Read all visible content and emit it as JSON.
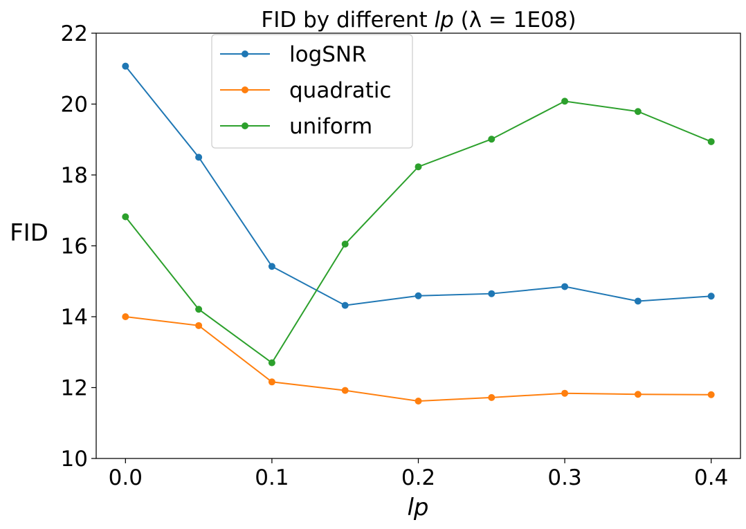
{
  "chart_data": {
    "type": "line",
    "title_prefix": "FID by different ",
    "title_var": "lp",
    "title_suffix": " (λ = 1E08)",
    "xlabel": "lp",
    "ylabel": "FID",
    "xlim": [
      -0.02,
      0.42
    ],
    "ylim": [
      10,
      22
    ],
    "x": [
      0.0,
      0.05,
      0.1,
      0.15,
      0.2,
      0.25,
      0.3,
      0.35,
      0.4
    ],
    "x_ticks": [
      "0.0",
      "0.1",
      "0.2",
      "0.3",
      "0.4"
    ],
    "y_ticks": [
      "10",
      "12",
      "14",
      "16",
      "18",
      "20",
      "22"
    ],
    "grid": false,
    "legend_position": "top-left",
    "series": [
      {
        "name": "logSNR",
        "color": "#1f77b4",
        "values": [
          21.07,
          18.5,
          15.42,
          14.32,
          14.59,
          14.65,
          14.85,
          14.44,
          14.58
        ]
      },
      {
        "name": "quadratic",
        "color": "#ff7f0e",
        "values": [
          14.0,
          13.75,
          12.16,
          11.92,
          11.62,
          11.72,
          11.84,
          11.81,
          11.8
        ]
      },
      {
        "name": "uniform",
        "color": "#2ca02c",
        "values": [
          16.82,
          14.21,
          12.7,
          16.05,
          18.23,
          19.01,
          20.08,
          19.79,
          18.94
        ]
      }
    ]
  }
}
